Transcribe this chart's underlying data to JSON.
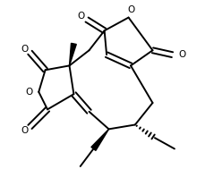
{
  "bg_color": "#ffffff",
  "line_color": "#000000",
  "lw": 1.4,
  "figsize": [
    2.48,
    2.08
  ],
  "dpi": 100,
  "xlim": [
    0,
    10
  ],
  "ylim": [
    0,
    8.5
  ]
}
